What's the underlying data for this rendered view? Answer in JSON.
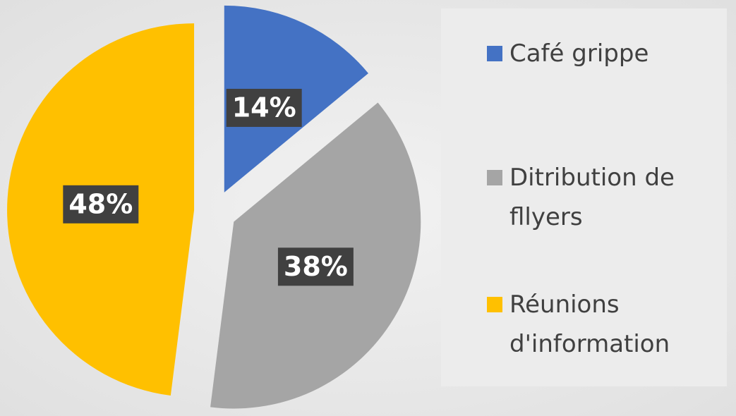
{
  "chart_data": {
    "type": "pie",
    "categories": [
      "Café grippe",
      "Ditribution de fllyers",
      "Réunions d'information"
    ],
    "values": [
      14,
      38,
      48
    ],
    "value_labels": [
      "14%",
      "38%",
      "48%"
    ],
    "colors": [
      "#4472c4",
      "#a5a5a5",
      "#ffc000"
    ],
    "legend": "right"
  }
}
